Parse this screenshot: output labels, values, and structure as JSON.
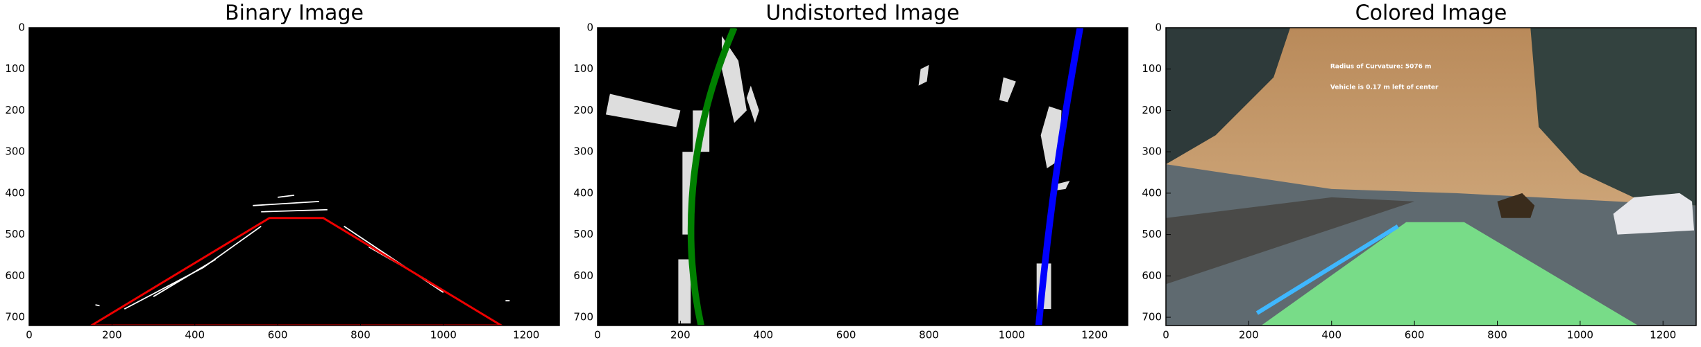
{
  "chart_data": [
    {
      "type": "image",
      "title": "Binary Image",
      "xlim": [
        0,
        1280
      ],
      "ylim": [
        720,
        0
      ],
      "xticks": [
        0,
        200,
        400,
        600,
        800,
        1000,
        1200
      ],
      "yticks": [
        0,
        100,
        200,
        300,
        400,
        500,
        600,
        700
      ]
    },
    {
      "type": "image",
      "title": "Undistorted Image",
      "xlim": [
        0,
        1280
      ],
      "ylim": [
        720,
        0
      ],
      "xticks": [
        0,
        200,
        400,
        600,
        800,
        1000,
        1200
      ],
      "yticks": [
        0,
        100,
        200,
        300,
        400,
        500,
        600,
        700
      ]
    },
    {
      "type": "image",
      "title": "Colored Image",
      "xlim": [
        0,
        1280
      ],
      "ylim": [
        720,
        0
      ],
      "xticks": [
        0,
        200,
        400,
        600,
        800,
        1000,
        1200
      ],
      "yticks": [
        0,
        100,
        200,
        300,
        400,
        500,
        600,
        700
      ],
      "annotations": [
        "Radius of Curvature: 5076 m",
        "Vehicle is 0.17 m left of center"
      ]
    }
  ]
}
